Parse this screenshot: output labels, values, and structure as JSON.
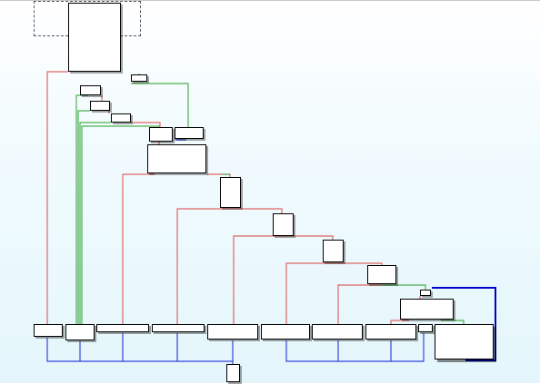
{
  "view": "ida-graph-overview",
  "colors": {
    "background_top": "#ffffff",
    "background_bottom": "#e4f6fc",
    "node_fill": "#ffffff",
    "node_border": "#000000",
    "edge_false": "#e06666",
    "edge_true": "#4caf50",
    "edge_unconditional": "#3344dd",
    "edge_highlight": "#0000cc"
  },
  "node_count": 33,
  "edge_types": [
    "conditional-false",
    "conditional-true",
    "unconditional"
  ]
}
